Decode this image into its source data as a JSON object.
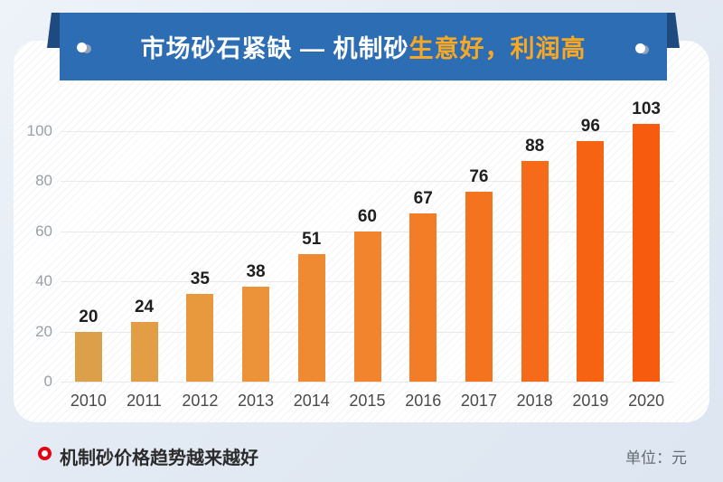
{
  "banner": {
    "title_white": "市场砂石紧缺 — 机制砂",
    "title_orange": "生意好，利润高",
    "bg_color": "#2d6db3",
    "fold_color": "#1e4a7f",
    "orange_text_color": "#f9a825"
  },
  "chart_data": {
    "type": "bar",
    "categories": [
      "2010",
      "2011",
      "2012",
      "2013",
      "2014",
      "2015",
      "2016",
      "2017",
      "2018",
      "2019",
      "2020"
    ],
    "values": [
      20,
      24,
      35,
      38,
      51,
      60,
      67,
      76,
      88,
      96,
      103
    ],
    "bar_colors": [
      "#dda04a",
      "#e29d45",
      "#e8993e",
      "#ec9339",
      "#ef8a33",
      "#f1842d",
      "#f37c26",
      "#f4731f",
      "#f56b19",
      "#f66313",
      "#f75c0e"
    ],
    "yticks": [
      0,
      20,
      40,
      60,
      80,
      100
    ],
    "ylim": [
      0,
      100
    ],
    "title": "市场砂石紧缺 — 机制砂生意好，利润高",
    "xlabel": "",
    "ylabel": "",
    "grid": true,
    "legend": "none",
    "unit_label": "单位：元"
  },
  "footer": {
    "note": "机制砂价格趋势越来越好",
    "bullet_color": "#e60012"
  }
}
